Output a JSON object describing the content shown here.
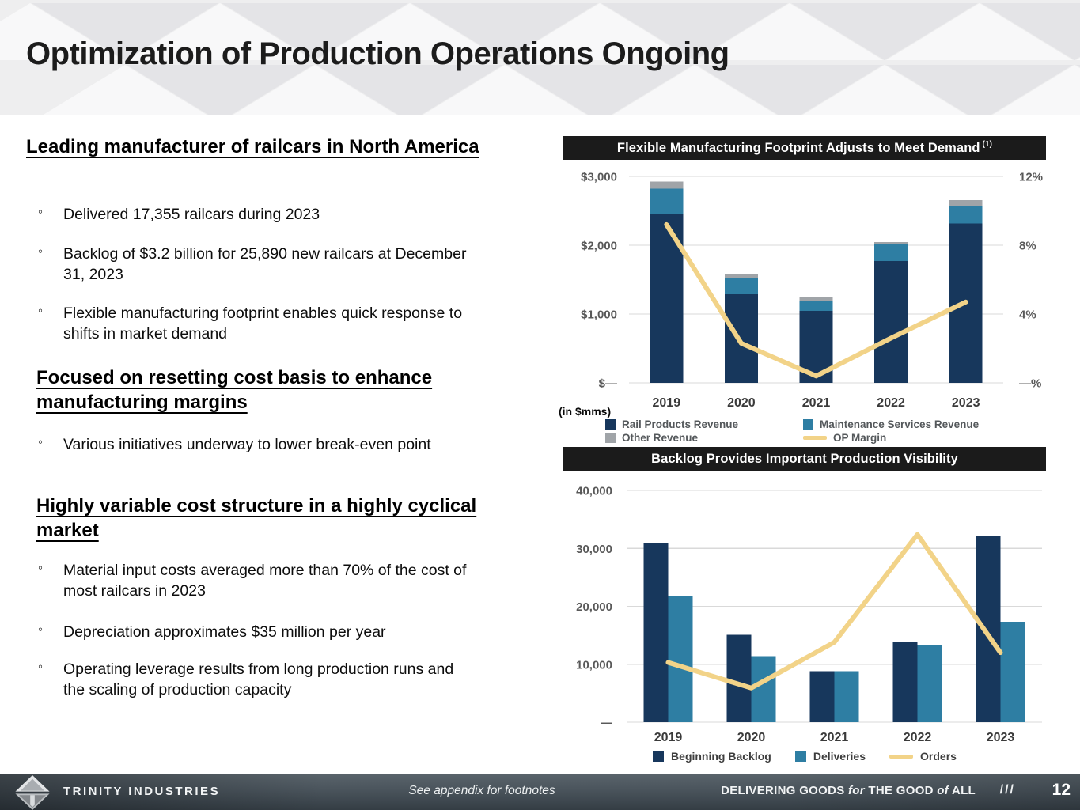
{
  "slide": {
    "title": "Optimization of Production Operations Ongoing"
  },
  "left_panel": {
    "bullet_marker": "◦",
    "sections": [
      {
        "heading": "Leading manufacturer of railcars in North America",
        "bullets": [
          "Delivered 17,355 railcars during 2023",
          "Backlog of $3.2 billion for 25,890 new railcars at December 31, 2023",
          "Flexible manufacturing footprint enables quick response to shifts in market demand"
        ]
      },
      {
        "heading": "Focused on resetting cost basis to enhance manufacturing margins",
        "bullets": [
          "Various initiatives underway to lower break-even point"
        ]
      },
      {
        "heading": "Highly variable cost structure in a highly cyclical market",
        "bullets": [
          "Material input costs averaged more than 70% of the cost of most railcars in 2023",
          "Depreciation approximates $35 million per year",
          "Operating leverage results from long production runs and the scaling of production capacity"
        ]
      }
    ]
  },
  "chart_data": [
    {
      "type": "bar",
      "variant": "stacked_bar_with_line",
      "title": "Flexible Manufacturing Footprint Adjusts to Meet Demand",
      "title_sup": "(1)",
      "units_label": "(in $mms)",
      "categories": [
        "2019",
        "2020",
        "2021",
        "2022",
        "2023"
      ],
      "series": [
        {
          "name": "Rail Products Revenue",
          "type": "bar",
          "color_key": "navy",
          "values": [
            2460,
            1285,
            1045,
            1770,
            2315
          ]
        },
        {
          "name": "Maintenance Services Revenue",
          "type": "bar",
          "color_key": "teal",
          "values": [
            360,
            240,
            150,
            245,
            255
          ]
        },
        {
          "name": "Other Revenue",
          "type": "bar",
          "color_key": "gray",
          "values": [
            105,
            55,
            55,
            30,
            85
          ]
        },
        {
          "name": "OP Margin",
          "type": "line",
          "color_key": "gold",
          "axis": "right",
          "values": [
            9.2,
            2.3,
            0.4,
            2.6,
            4.7
          ]
        }
      ],
      "left_axis": {
        "ticks": [
          "$3,000",
          "$2,000",
          "$1,000",
          "$—"
        ],
        "max": 3000
      },
      "right_axis": {
        "ticks": [
          "12%",
          "8%",
          "4%",
          "—%"
        ],
        "max": 12
      },
      "grid": true,
      "legend_position": "bottom"
    },
    {
      "type": "bar",
      "variant": "grouped_bar_with_line",
      "title": "Backlog Provides Important Production Visibility",
      "categories": [
        "2019",
        "2020",
        "2021",
        "2022",
        "2023"
      ],
      "series": [
        {
          "name": "Beginning Backlog",
          "type": "bar",
          "color_key": "navy",
          "values": [
            30900,
            15100,
            8800,
            13900,
            32200
          ]
        },
        {
          "name": "Deliveries",
          "type": "bar",
          "color_key": "teal",
          "values": [
            21800,
            11400,
            8800,
            13300,
            17355
          ]
        },
        {
          "name": "Orders",
          "type": "line",
          "color_key": "gold",
          "values": [
            10300,
            5900,
            13800,
            32400,
            12000
          ]
        }
      ],
      "left_axis": {
        "ticks": [
          "40,000",
          "30,000",
          "20,000",
          "10,000",
          "—"
        ],
        "max": 40000
      },
      "grid": true,
      "legend_position": "bottom"
    }
  ],
  "footer": {
    "company": "TRINITY INDUSTRIES",
    "note": "See appendix for footnotes",
    "tagline": {
      "p1": "DELIVERING GOODS ",
      "p2": "for",
      "p3": " THE GOOD ",
      "p4": "of",
      "p5": " ALL"
    },
    "slashes": "///",
    "page_number": "12"
  },
  "colors": {
    "navy": "#17375c",
    "teal": "#2e7ea3",
    "gray": "#a0a4a8",
    "gold": "#f2d388",
    "gridline": "#d9d9d9",
    "chart_header_bg": "#1b1b1b",
    "header_band": "#eeeeef",
    "footer_dark": "#343d44"
  }
}
